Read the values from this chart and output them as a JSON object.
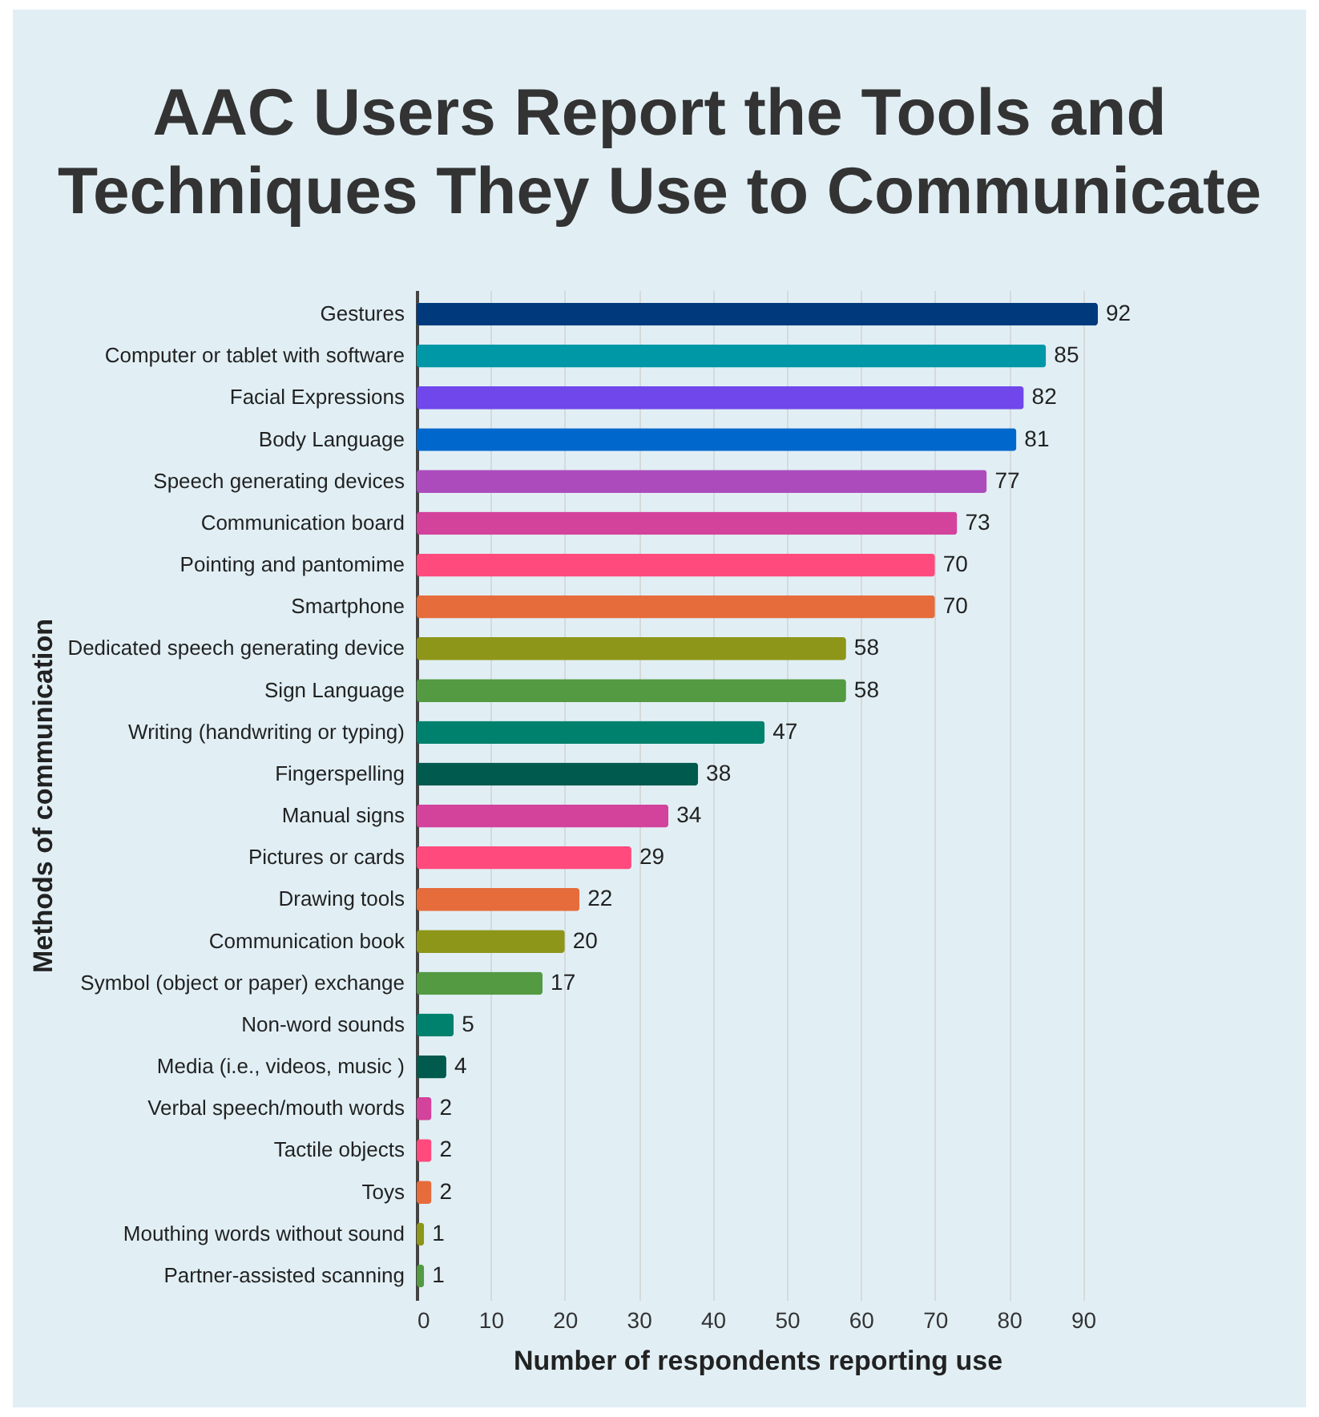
{
  "chart_data": {
    "type": "bar",
    "orientation": "horizontal",
    "title": "AAC Users Report the Tools and Techniques They Use to Communicate",
    "xlabel": "Number of respondents reporting use",
    "ylabel": "Methods of communication",
    "categories": [
      "Gestures",
      "Computer or tablet with software",
      "Facial Expressions",
      "Body Language",
      "Speech generating devices",
      "Communication board",
      "Pointing and pantomime",
      "Smartphone",
      "Dedicated speech generating device",
      "Sign Language",
      "Writing (handwriting or typing)",
      "Fingerspelling",
      "Manual signs",
      "Pictures or cards",
      "Drawing tools",
      "Communication book",
      "Symbol (object or paper) exchange",
      "Non-word sounds",
      "Media (i.e., videos, music )",
      "Verbal speech/mouth words",
      "Tactile objects",
      "Toys",
      "Mouthing words without sound",
      "Partner-assisted scanning"
    ],
    "values": [
      92,
      85,
      82,
      81,
      77,
      73,
      70,
      70,
      58,
      58,
      47,
      38,
      34,
      29,
      22,
      20,
      17,
      5,
      4,
      2,
      2,
      2,
      1,
      1
    ],
    "colors": [
      "#003a7d",
      "#0097a7",
      "#7047eb",
      "#0068cc",
      "#ac4cbc",
      "#d3429b",
      "#ff4a7d",
      "#e66c3c",
      "#8e961a",
      "#539a42",
      "#00816d",
      "#005a4e",
      "#d3429b",
      "#ff4a7d",
      "#e66c3c",
      "#8e961a",
      "#539a42",
      "#00816d",
      "#005a4e",
      "#d3429b",
      "#ff4a7d",
      "#e66c3c",
      "#8e961a",
      "#539a42"
    ],
    "xlim": [
      0,
      92
    ],
    "xticks": [
      0,
      10,
      20,
      30,
      40,
      50,
      60,
      70,
      80,
      90
    ],
    "grid": "x",
    "data_labels": true
  }
}
